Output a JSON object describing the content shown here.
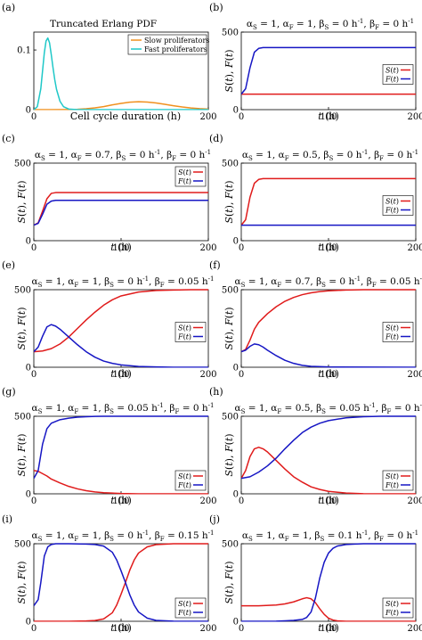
{
  "chart_data": [
    {
      "id": "a",
      "panel_label": "(a)",
      "type": "line",
      "title": "Truncated Erlang PDF",
      "xlabel": "Cell cycle duration (h)",
      "ylabel": "",
      "xlim": [
        0,
        200
      ],
      "ylim": [
        0,
        0.13
      ],
      "xticks": [
        0,
        200
      ],
      "xtick_labels": [
        "0",
        "200"
      ],
      "yticks": [
        0,
        0.1
      ],
      "ytick_labels": [
        "0",
        "0.1"
      ],
      "legend": {
        "placement": "top-right",
        "entries": [
          "Slow proliferators",
          "Fast proliferators"
        ]
      },
      "series": [
        {
          "name": "Slow proliferators",
          "color": "#f0901e",
          "x": [
            0,
            20,
            40,
            50,
            60,
            70,
            80,
            90,
            100,
            110,
            120,
            130,
            140,
            150,
            160,
            170,
            180,
            190,
            200
          ],
          "y": [
            0,
            0,
            0.0002,
            0.0006,
            0.0015,
            0.003,
            0.005,
            0.008,
            0.0105,
            0.0125,
            0.0132,
            0.0127,
            0.0112,
            0.009,
            0.0066,
            0.0045,
            0.0028,
            0.0016,
            0.0009
          ]
        },
        {
          "name": "Fast proliferators",
          "color": "#1fc8c8",
          "x": [
            0,
            4,
            8,
            10,
            12,
            14,
            16,
            18,
            20,
            22,
            24,
            26,
            30,
            34,
            40,
            50,
            60,
            200
          ],
          "y": [
            0,
            0.005,
            0.035,
            0.065,
            0.095,
            0.115,
            0.12,
            0.112,
            0.092,
            0.07,
            0.05,
            0.034,
            0.014,
            0.005,
            0.001,
            0,
            0,
            0
          ]
        }
      ]
    },
    {
      "id": "b",
      "panel_label": "(b)",
      "type": "line",
      "title": "α_S = 1, α_F = 1, β_S = 0 h⁻¹, β_F = 0 h⁻¹",
      "xlabel": "t (h)",
      "ylabel": "S(t), F(t)",
      "xlim": [
        0,
        200
      ],
      "ylim": [
        0,
        500
      ],
      "xticks": [
        0,
        100,
        200
      ],
      "yticks": [
        0,
        500
      ],
      "legend": {
        "placement": "center-right",
        "entries": [
          "S(t)",
          "F(t)"
        ]
      },
      "series": [
        {
          "name": "S(t)",
          "color": "#e01b1b",
          "x": [
            0,
            10,
            20,
            30,
            40,
            200
          ],
          "y": [
            100,
            100,
            100,
            100,
            100,
            100
          ]
        },
        {
          "name": "F(t)",
          "color": "#1616c4",
          "x": [
            0,
            5,
            10,
            15,
            20,
            25,
            30,
            40,
            200
          ],
          "y": [
            100,
            135,
            270,
            370,
            395,
            400,
            400,
            400,
            400
          ]
        }
      ]
    },
    {
      "id": "c",
      "panel_label": "(c)",
      "type": "line",
      "title": "α_S = 1, α_F = 0.7, β_S = 0 h⁻¹, β_F = 0 h⁻¹",
      "xlabel": "t (h)",
      "ylabel": "S(t), F(t)",
      "xlim": [
        0,
        200
      ],
      "ylim": [
        0,
        500
      ],
      "xticks": [
        0,
        100,
        200
      ],
      "yticks": [
        0,
        500
      ],
      "legend": {
        "placement": "top-right",
        "entries": [
          "S(t)",
          "F(t)"
        ]
      },
      "series": [
        {
          "name": "S(t)",
          "color": "#e01b1b",
          "x": [
            0,
            5,
            10,
            15,
            20,
            25,
            30,
            40,
            200
          ],
          "y": [
            100,
            115,
            190,
            270,
            305,
            310,
            310,
            310,
            310
          ]
        },
        {
          "name": "F(t)",
          "color": "#1616c4",
          "x": [
            0,
            5,
            10,
            15,
            20,
            25,
            30,
            40,
            200
          ],
          "y": [
            100,
            112,
            170,
            235,
            255,
            260,
            260,
            260,
            260
          ]
        }
      ]
    },
    {
      "id": "d",
      "panel_label": "(d)",
      "type": "line",
      "title": "α_S = 1, α_F = 0.5, β_S = 0 h⁻¹, β_F = 0 h⁻¹",
      "xlabel": "t (h)",
      "ylabel": "S(t), F(t)",
      "xlim": [
        0,
        200
      ],
      "ylim": [
        0,
        500
      ],
      "xticks": [
        0,
        100,
        200
      ],
      "yticks": [
        0,
        500
      ],
      "legend": {
        "placement": "center-right",
        "entries": [
          "S(t)",
          "F(t)"
        ]
      },
      "series": [
        {
          "name": "S(t)",
          "color": "#e01b1b",
          "x": [
            0,
            5,
            10,
            15,
            20,
            25,
            30,
            40,
            200
          ],
          "y": [
            100,
            135,
            280,
            370,
            395,
            400,
            400,
            400,
            400
          ]
        },
        {
          "name": "F(t)",
          "color": "#1616c4",
          "x": [
            0,
            200
          ],
          "y": [
            100,
            100
          ]
        }
      ]
    },
    {
      "id": "e",
      "panel_label": "(e)",
      "type": "line",
      "title": "α_S = 1, α_F = 1, β_S = 0 h⁻¹, β_F = 0.05 h⁻¹",
      "xlabel": "t (h)",
      "ylabel": "S(t), F(t)",
      "xlim": [
        0,
        200
      ],
      "ylim": [
        0,
        500
      ],
      "xticks": [
        0,
        100,
        200
      ],
      "yticks": [
        0,
        500
      ],
      "legend": {
        "placement": "center-right",
        "entries": [
          "S(t)",
          "F(t)"
        ]
      },
      "series": [
        {
          "name": "S(t)",
          "color": "#e01b1b",
          "x": [
            0,
            10,
            20,
            30,
            40,
            50,
            60,
            70,
            80,
            90,
            100,
            120,
            140,
            160,
            180,
            200
          ],
          "y": [
            100,
            105,
            120,
            150,
            195,
            250,
            305,
            355,
            400,
            435,
            460,
            485,
            495,
            498,
            500,
            500
          ]
        },
        {
          "name": "F(t)",
          "color": "#1616c4",
          "x": [
            0,
            5,
            10,
            15,
            20,
            25,
            30,
            40,
            50,
            60,
            70,
            80,
            90,
            100,
            120,
            140,
            160,
            200
          ],
          "y": [
            100,
            130,
            200,
            260,
            275,
            265,
            245,
            195,
            145,
            100,
            65,
            40,
            25,
            15,
            5,
            2,
            0,
            0
          ]
        }
      ]
    },
    {
      "id": "f",
      "panel_label": "(f)",
      "type": "line",
      "title": "α_S = 1, α_F = 0.7, β_S = 0 h⁻¹, β_F = 0.05 h⁻¹",
      "xlabel": "t (h)",
      "ylabel": "S(t), F(t)",
      "xlim": [
        0,
        200
      ],
      "ylim": [
        0,
        500
      ],
      "xticks": [
        0,
        100,
        200
      ],
      "yticks": [
        0,
        500
      ],
      "legend": {
        "placement": "center-right",
        "entries": [
          "S(t)",
          "F(t)"
        ]
      },
      "series": [
        {
          "name": "S(t)",
          "color": "#e01b1b",
          "x": [
            0,
            5,
            10,
            15,
            20,
            30,
            40,
            50,
            60,
            70,
            80,
            90,
            100,
            120,
            140,
            200
          ],
          "y": [
            100,
            115,
            175,
            245,
            290,
            345,
            390,
            425,
            450,
            468,
            480,
            488,
            493,
            498,
            500,
            500
          ]
        },
        {
          "name": "F(t)",
          "color": "#1616c4",
          "x": [
            0,
            5,
            10,
            15,
            20,
            25,
            30,
            40,
            50,
            60,
            70,
            80,
            100,
            200
          ],
          "y": [
            100,
            110,
            135,
            150,
            145,
            130,
            110,
            75,
            45,
            25,
            12,
            6,
            2,
            0
          ]
        }
      ]
    },
    {
      "id": "g",
      "panel_label": "(g)",
      "type": "line",
      "title": "α_S = 1, α_F = 1, β_S = 0.05 h⁻¹, β_F = 0 h⁻¹",
      "xlabel": "t (h)",
      "ylabel": "S(t), F(t)",
      "xlim": [
        0,
        200
      ],
      "ylim": [
        0,
        500
      ],
      "xticks": [
        0,
        100,
        200
      ],
      "yticks": [
        0,
        500
      ],
      "legend": {
        "placement": "bottom-right",
        "entries": [
          "S(t)",
          "F(t)"
        ]
      },
      "series": [
        {
          "name": "S(t)",
          "color": "#e01b1b",
          "x": [
            0,
            5,
            10,
            15,
            20,
            30,
            40,
            50,
            60,
            70,
            80,
            100,
            120,
            200
          ],
          "y": [
            150,
            145,
            130,
            115,
            95,
            70,
            48,
            32,
            20,
            12,
            7,
            2,
            0,
            0
          ]
        },
        {
          "name": "F(t)",
          "color": "#1616c4",
          "x": [
            0,
            5,
            10,
            15,
            20,
            30,
            40,
            50,
            60,
            70,
            80,
            100,
            200
          ],
          "y": [
            100,
            150,
            320,
            420,
            455,
            478,
            488,
            494,
            497,
            499,
            500,
            500,
            500
          ]
        }
      ]
    },
    {
      "id": "h",
      "panel_label": "(h)",
      "type": "line",
      "title": "α_S = 1, α_F = 0.5, β_S = 0.05 h⁻¹, β_F = 0 h⁻¹",
      "xlabel": "t (h)",
      "ylabel": "S(t), F(t)",
      "xlim": [
        0,
        200
      ],
      "ylim": [
        0,
        500
      ],
      "xticks": [
        0,
        100,
        200
      ],
      "yticks": [
        0,
        500
      ],
      "legend": {
        "placement": "bottom-right",
        "entries": [
          "S(t)",
          "F(t)"
        ]
      },
      "series": [
        {
          "name": "S(t)",
          "color": "#e01b1b",
          "x": [
            0,
            5,
            10,
            15,
            20,
            25,
            30,
            40,
            50,
            60,
            70,
            80,
            90,
            100,
            120,
            140,
            200
          ],
          "y": [
            100,
            150,
            240,
            290,
            300,
            290,
            270,
            215,
            160,
            110,
            75,
            45,
            28,
            16,
            5,
            1,
            0
          ]
        },
        {
          "name": "F(t)",
          "color": "#1616c4",
          "x": [
            0,
            10,
            20,
            30,
            40,
            50,
            60,
            70,
            80,
            90,
            100,
            120,
            140,
            160,
            200
          ],
          "y": [
            100,
            110,
            140,
            180,
            230,
            290,
            345,
            395,
            430,
            455,
            472,
            490,
            497,
            500,
            500
          ]
        }
      ]
    },
    {
      "id": "i",
      "panel_label": "(i)",
      "type": "line",
      "title": "α_S = 1, α_F = 1, β_S = 0 h⁻¹, β_F = 0.15 h⁻¹",
      "xlabel": "t (h)",
      "ylabel": "S(t), F(t)",
      "xlim": [
        0,
        200
      ],
      "ylim": [
        0,
        500
      ],
      "xticks": [
        0,
        100,
        200
      ],
      "yticks": [
        0,
        500
      ],
      "legend": {
        "placement": "bottom-right",
        "entries": [
          "S(t)",
          "F(t)"
        ]
      },
      "series": [
        {
          "name": "S(t)",
          "color": "#e01b1b",
          "x": [
            0,
            40,
            60,
            70,
            80,
            90,
            95,
            100,
            105,
            110,
            115,
            120,
            130,
            140,
            160,
            200
          ],
          "y": [
            0,
            0,
            2,
            5,
            15,
            55,
            105,
            175,
            250,
            330,
            395,
            440,
            480,
            494,
            500,
            500
          ]
        },
        {
          "name": "F(t)",
          "color": "#1616c4",
          "x": [
            0,
            5,
            8,
            12,
            16,
            20,
            25,
            30,
            40,
            60,
            70,
            80,
            90,
            95,
            100,
            105,
            110,
            115,
            120,
            130,
            140,
            160,
            200
          ],
          "y": [
            100,
            140,
            250,
            420,
            480,
            495,
            500,
            500,
            500,
            498,
            495,
            485,
            445,
            395,
            325,
            250,
            170,
            105,
            60,
            20,
            6,
            1,
            0
          ]
        }
      ]
    },
    {
      "id": "j",
      "panel_label": "(j)",
      "type": "line",
      "title": "α_S = 1, α_F = 1, β_S = 0.1 h⁻¹, β_F = 0 h⁻¹",
      "xlabel": "t (h)",
      "ylabel": "S(t), F(t)",
      "xlim": [
        0,
        200
      ],
      "ylim": [
        0,
        500
      ],
      "xticks": [
        0,
        100,
        200
      ],
      "yticks": [
        0,
        500
      ],
      "legend": {
        "placement": "bottom-right",
        "entries": [
          "S(t)",
          "F(t)"
        ]
      },
      "series": [
        {
          "name": "S(t)",
          "color": "#e01b1b",
          "x": [
            0,
            20,
            40,
            50,
            60,
            70,
            75,
            80,
            85,
            90,
            95,
            100,
            105,
            110,
            120,
            200
          ],
          "y": [
            100,
            100,
            105,
            112,
            125,
            145,
            152,
            145,
            120,
            80,
            45,
            20,
            8,
            3,
            0,
            0
          ]
        },
        {
          "name": "F(t)",
          "color": "#1616c4",
          "x": [
            0,
            20,
            40,
            50,
            60,
            70,
            75,
            80,
            85,
            90,
            95,
            100,
            105,
            110,
            120,
            130,
            140,
            160,
            200
          ],
          "y": [
            0,
            0,
            1,
            3,
            6,
            12,
            25,
            60,
            150,
            280,
            380,
            440,
            470,
            485,
            495,
            498,
            500,
            500,
            500
          ]
        }
      ]
    }
  ]
}
